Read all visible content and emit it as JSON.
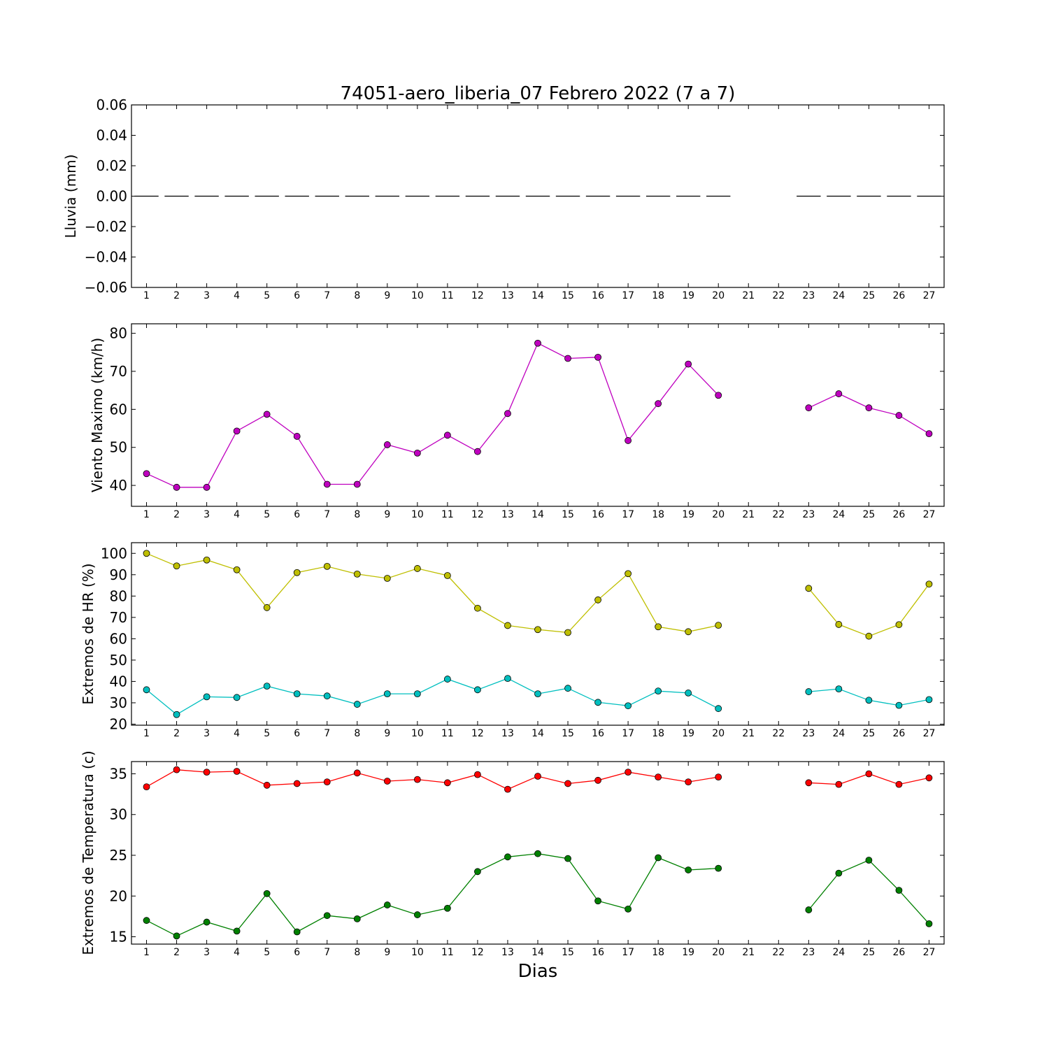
{
  "figure": {
    "title": "74051-aero_liberia_07 Febrero 2022  (7 a 7)",
    "xlabel": "Dias"
  },
  "chart_data": [
    {
      "type": "line",
      "ylabel": "Lluvia (mm)",
      "ylim": [
        -0.06,
        0.06
      ],
      "yticks": [
        -0.06,
        -0.04,
        -0.02,
        0.0,
        0.02,
        0.04,
        0.06
      ],
      "ytick_labels": [
        "−0.06",
        "−0.04",
        "−0.02",
        "0.00",
        "0.02",
        "0.04",
        "0.06"
      ],
      "x": [
        1,
        2,
        3,
        4,
        5,
        6,
        7,
        8,
        9,
        10,
        11,
        12,
        13,
        14,
        15,
        16,
        17,
        18,
        19,
        20,
        21,
        22,
        23,
        24,
        25,
        26,
        27
      ],
      "series": [
        {
          "style": "bar-segment",
          "color": "#000000",
          "values": [
            0,
            0,
            0,
            0,
            0,
            0,
            0,
            0,
            0,
            0,
            0,
            0,
            0,
            0,
            0,
            0,
            0,
            0,
            0,
            0,
            null,
            null,
            0,
            0,
            0,
            0,
            0
          ]
        }
      ]
    },
    {
      "type": "line",
      "ylabel": "Viento Maximo (km/h)",
      "ylim": [
        34.5,
        82.5
      ],
      "yticks": [
        40,
        50,
        60,
        70,
        80
      ],
      "ytick_labels": [
        "40",
        "50",
        "60",
        "70",
        "80"
      ],
      "x": [
        1,
        2,
        3,
        4,
        5,
        6,
        7,
        8,
        9,
        10,
        11,
        12,
        13,
        14,
        15,
        16,
        17,
        18,
        19,
        20,
        21,
        22,
        23,
        24,
        25,
        26,
        27
      ],
      "series": [
        {
          "color": "#bf00bf",
          "values": [
            43.1,
            39.5,
            39.5,
            54.3,
            58.7,
            52.9,
            40.3,
            40.3,
            50.7,
            48.5,
            53.2,
            48.9,
            58.9,
            77.4,
            73.4,
            73.7,
            51.8,
            61.5,
            71.9,
            63.7,
            null,
            null,
            60.4,
            64.1,
            60.4,
            58.4,
            53.6
          ]
        }
      ]
    },
    {
      "type": "line",
      "ylabel": "Extremos de HR (%)",
      "ylim": [
        19.5,
        105
      ],
      "yticks": [
        20,
        30,
        40,
        50,
        60,
        70,
        80,
        90,
        100
      ],
      "ytick_labels": [
        "20",
        "30",
        "40",
        "50",
        "60",
        "70",
        "80",
        "90",
        "100"
      ],
      "x": [
        1,
        2,
        3,
        4,
        5,
        6,
        7,
        8,
        9,
        10,
        11,
        12,
        13,
        14,
        15,
        16,
        17,
        18,
        19,
        20,
        21,
        22,
        23,
        24,
        25,
        26,
        27
      ],
      "series": [
        {
          "color": "#bfbf00",
          "values": [
            100,
            94.1,
            96.9,
            92.3,
            74.6,
            91.0,
            93.9,
            90.3,
            88.3,
            92.9,
            89.6,
            74.3,
            66.2,
            64.3,
            62.9,
            78.2,
            90.5,
            65.6,
            63.3,
            66.3,
            null,
            null,
            83.6,
            66.7,
            61.2,
            66.6,
            85.6
          ]
        },
        {
          "color": "#00bfbf",
          "values": [
            36.1,
            24.5,
            32.8,
            32.5,
            37.8,
            34.2,
            33.2,
            29.3,
            34.2,
            34.2,
            41.1,
            36.1,
            41.4,
            34.2,
            36.8,
            30.2,
            28.6,
            35.5,
            34.6,
            27.3,
            null,
            null,
            35.2,
            36.5,
            31.2,
            28.8,
            31.5
          ]
        }
      ]
    },
    {
      "type": "line",
      "ylabel": "Extremos de Temperatura (c)",
      "ylim": [
        14.1,
        36.5
      ],
      "yticks": [
        15,
        20,
        25,
        30,
        35
      ],
      "ytick_labels": [
        "15",
        "20",
        "25",
        "30",
        "35"
      ],
      "x": [
        1,
        2,
        3,
        4,
        5,
        6,
        7,
        8,
        9,
        10,
        11,
        12,
        13,
        14,
        15,
        16,
        17,
        18,
        19,
        20,
        21,
        22,
        23,
        24,
        25,
        26,
        27
      ],
      "series": [
        {
          "color": "#ff0000",
          "values": [
            33.4,
            35.5,
            35.2,
            35.3,
            33.6,
            33.8,
            34.0,
            35.1,
            34.1,
            34.3,
            33.9,
            34.9,
            33.1,
            34.7,
            33.8,
            34.2,
            35.2,
            34.6,
            34.0,
            34.6,
            null,
            null,
            33.9,
            33.7,
            35.0,
            33.7,
            34.5
          ]
        },
        {
          "color": "#008000",
          "values": [
            17.0,
            15.1,
            16.8,
            15.7,
            20.3,
            15.6,
            17.6,
            17.2,
            18.9,
            17.7,
            18.5,
            23.0,
            24.8,
            25.2,
            24.6,
            19.4,
            18.4,
            24.7,
            23.2,
            23.4,
            null,
            null,
            18.3,
            22.8,
            24.4,
            20.7,
            16.6
          ]
        }
      ]
    }
  ]
}
